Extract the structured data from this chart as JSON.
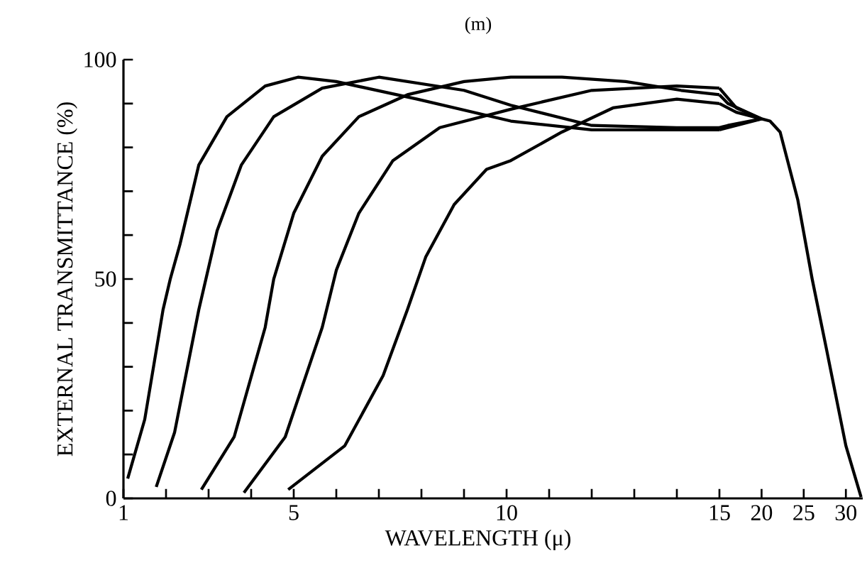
{
  "chart_data": [
    {
      "type": "line",
      "title": "(m)",
      "xlabel": "WAVELENGTH (μ)",
      "ylabel": "EXTERNAL TRANSMITTANCE (%)",
      "xlim": [
        1,
        15
      ],
      "ylim": [
        0,
        100
      ],
      "xticks": [
        1,
        {
          "value": 2,
          "label": null
        },
        {
          "value": 3,
          "label": null
        },
        {
          "value": 4,
          "label": null
        },
        5,
        {
          "value": 6,
          "label": null
        },
        {
          "value": 7,
          "label": null
        },
        {
          "value": 8,
          "label": null
        },
        {
          "value": 9,
          "label": null
        },
        10,
        {
          "value": 11,
          "label": null
        },
        {
          "value": 12,
          "label": null
        },
        {
          "value": 13,
          "label": null
        },
        {
          "value": 14,
          "label": null
        },
        15
      ],
      "yticks": [
        0,
        {
          "value": 10,
          "label": null
        },
        {
          "value": 20,
          "label": null
        },
        {
          "value": 30,
          "label": null
        },
        {
          "value": 40,
          "label": null
        },
        50,
        {
          "value": 60,
          "label": null
        },
        {
          "value": 70,
          "label": null
        },
        {
          "value": 80,
          "label": null
        },
        {
          "value": 90,
          "label": null
        },
        100
      ],
      "series": [
        {
          "color": "#000000",
          "x": [
            1.1,
            1.5,
            1.93,
            2.1,
            2.33,
            2.77,
            3.43,
            4.33,
            5.1,
            6,
            7.9,
            10.1,
            12,
            14,
            15
          ],
          "values": [
            4.5,
            18,
            43,
            50,
            58,
            76,
            87,
            94,
            96,
            95,
            91,
            86,
            84,
            84,
            84
          ]
        },
        {
          "color": "#000000",
          "x": [
            1.77,
            2.2,
            2.77,
            3.2,
            3.77,
            4.53,
            5.67,
            7,
            9,
            10.1,
            12,
            14,
            15
          ],
          "values": [
            2.6,
            15,
            43,
            61,
            76,
            87,
            93.5,
            96,
            93,
            89.6,
            85,
            84.5,
            84.5
          ]
        },
        {
          "color": "#000000",
          "x": [
            2.83,
            3.6,
            4.33,
            4.53,
            5,
            5.67,
            6.53,
            7.67,
            9,
            10.1,
            11.3,
            12.8,
            14.1,
            15
          ],
          "values": [
            2,
            14,
            39,
            50,
            65,
            78,
            87,
            92,
            95,
            96,
            96,
            95,
            93,
            92
          ]
        },
        {
          "color": "#000000",
          "x": [
            3.83,
            4.8,
            5.67,
            6,
            6.53,
            7.33,
            8.43,
            10.1,
            12,
            14,
            15
          ],
          "values": [
            1.3,
            14,
            39,
            52,
            65,
            77,
            84.5,
            88.7,
            93,
            94,
            93.5
          ]
        },
        {
          "color": "#000000",
          "x": [
            4.87,
            6.2,
            7.1,
            7.67,
            8.1,
            8.77,
            9.53,
            10.1,
            11.3,
            12.5,
            14,
            15
          ],
          "values": [
            2,
            12,
            28,
            43,
            55,
            67,
            75,
            77,
            83.5,
            89,
            91,
            90
          ]
        }
      ]
    },
    {
      "type": "line",
      "xlim": [
        15,
        32
      ],
      "ylim": [
        0,
        100
      ],
      "xticks": [
        20,
        25,
        30
      ],
      "tick_labels": "x",
      "series": [
        {
          "color": "#000000",
          "x": [
            15,
            17,
            20,
            21,
            22.2,
            24.3,
            26,
            27.7,
            30,
            31.8
          ],
          "values": [
            84,
            85,
            86.5,
            86,
            83.5,
            68,
            50,
            34,
            12,
            0.3
          ]
        },
        {
          "color": "#000000",
          "x": [
            15,
            16,
            20
          ],
          "values": [
            84.5,
            85,
            86.5
          ]
        },
        {
          "color": "#000000",
          "x": [
            15,
            16,
            20
          ],
          "values": [
            92,
            90,
            86.5
          ]
        },
        {
          "color": "#000000",
          "x": [
            15,
            17,
            20
          ],
          "values": [
            93.5,
            89,
            86.5
          ]
        },
        {
          "color": "#000000",
          "x": [
            15,
            17,
            20
          ],
          "values": [
            90,
            88,
            86.5
          ]
        }
      ]
    }
  ]
}
